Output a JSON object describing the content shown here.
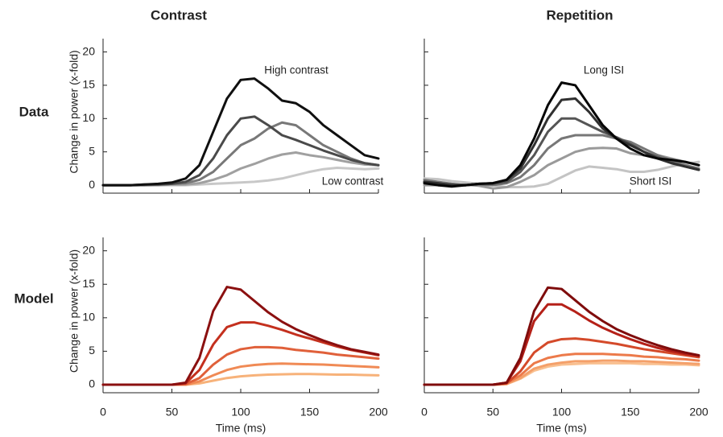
{
  "chart_data": [
    {
      "type": "line",
      "title": "Contrast",
      "row_label": "Data",
      "ylabel": "Change in power (x-fold)",
      "annotations": [
        "High contrast",
        "Low contrast"
      ],
      "x": [
        0,
        10,
        20,
        30,
        40,
        50,
        60,
        70,
        80,
        90,
        100,
        110,
        120,
        130,
        140,
        150,
        160,
        170,
        180,
        190,
        200
      ],
      "xlim": [
        0,
        200
      ],
      "xticks": [
        0,
        50,
        100,
        150,
        200
      ],
      "xtick_labels": false,
      "ylim": [
        -1.2,
        22
      ],
      "yticks": [
        0,
        5,
        10,
        15,
        20
      ],
      "ytick_labels": true,
      "series": [
        {
          "color": "#c8c8c8",
          "values": [
            0,
            0,
            0,
            0,
            0,
            0,
            0,
            0.1,
            0.2,
            0.3,
            0.4,
            0.5,
            0.7,
            1,
            1.5,
            2,
            2.4,
            2.6,
            2.5,
            2.4,
            2.5
          ]
        },
        {
          "color": "#a0a0a0",
          "values": [
            0,
            0,
            0,
            0,
            0,
            0.1,
            0.1,
            0.3,
            0.8,
            1.5,
            2.5,
            3.2,
            4,
            4.6,
            4.9,
            4.5,
            4.2,
            3.8,
            3.4,
            3.1,
            3
          ]
        },
        {
          "color": "#787878",
          "values": [
            0,
            0,
            0,
            0,
            0.1,
            0.2,
            0.3,
            0.8,
            2,
            4,
            6,
            7,
            8.5,
            9.4,
            9,
            7.5,
            6,
            5,
            4,
            3.3,
            3
          ]
        },
        {
          "color": "#4a4a4a",
          "values": [
            0,
            0,
            0,
            0.1,
            0.1,
            0.2,
            0.5,
            1.5,
            4,
            7.5,
            10,
            10.3,
            9,
            7.5,
            6.8,
            6,
            5.2,
            4.5,
            3.8,
            3.3,
            3
          ]
        },
        {
          "color": "#101010",
          "values": [
            0,
            0,
            0,
            0.1,
            0.2,
            0.4,
            1,
            3,
            8,
            13,
            15.8,
            16,
            14.5,
            12.7,
            12.3,
            11,
            9,
            7.5,
            6,
            4.5,
            4
          ]
        }
      ]
    },
    {
      "type": "line",
      "title": "Repetition",
      "annotations": [
        "Long ISI",
        "Short ISI"
      ],
      "x": [
        0,
        10,
        20,
        30,
        40,
        50,
        60,
        70,
        80,
        90,
        100,
        110,
        120,
        130,
        140,
        150,
        160,
        170,
        180,
        190,
        200
      ],
      "xlim": [
        0,
        200
      ],
      "xticks": [
        0,
        50,
        100,
        150,
        200
      ],
      "xtick_labels": false,
      "ylim": [
        -1.2,
        22
      ],
      "yticks": [
        0,
        5,
        10,
        15,
        20
      ],
      "ytick_labels": false,
      "series": [
        {
          "color": "#c4c4c4",
          "values": [
            1,
            0.9,
            0.6,
            0.4,
            0.2,
            0,
            -0.3,
            -0.3,
            -0.2,
            0.2,
            1.2,
            2.2,
            2.8,
            2.6,
            2.4,
            2,
            2,
            2.3,
            2.8,
            3.2,
            3.5
          ]
        },
        {
          "color": "#9a9a9a",
          "values": [
            0,
            0,
            0,
            0.1,
            -0.1,
            -0.5,
            -0.3,
            0.5,
            1.5,
            3,
            4,
            5,
            5.5,
            5.6,
            5.5,
            4.8,
            4.5,
            4.5,
            4,
            3.5,
            3
          ]
        },
        {
          "color": "#777777",
          "values": [
            0.8,
            0.5,
            0.2,
            0,
            0.1,
            0,
            0.3,
            1.2,
            3,
            5.5,
            7,
            7.5,
            7.5,
            7.5,
            7,
            6.5,
            5.5,
            4.5,
            3.7,
            3,
            2.5
          ]
        },
        {
          "color": "#555555",
          "values": [
            0.5,
            0.2,
            0.1,
            0,
            0.2,
            0.2,
            0.5,
            2,
            4.5,
            8,
            10,
            10,
            9,
            8,
            7.2,
            6.2,
            5,
            4.2,
            3.4,
            2.8,
            2.3
          ]
        },
        {
          "color": "#303030",
          "values": [
            0.5,
            0.3,
            0,
            0,
            0.2,
            0.3,
            0.8,
            2.5,
            6,
            10,
            12.8,
            13,
            11,
            8.5,
            7,
            6,
            5,
            4,
            3.3,
            2.8,
            2.3
          ]
        },
        {
          "color": "#050505",
          "values": [
            0.3,
            0,
            -0.2,
            0,
            0.2,
            0.3,
            0.8,
            3,
            7,
            12,
            15.4,
            15,
            12,
            9,
            7,
            5.5,
            4.5,
            4,
            3.8,
            3.5,
            3
          ]
        }
      ]
    },
    {
      "type": "line",
      "row_label": "Model",
      "ylabel": "Change in power (x-fold)",
      "xlabel": "Time (ms)",
      "x": [
        0,
        10,
        20,
        30,
        40,
        50,
        60,
        70,
        80,
        90,
        100,
        110,
        120,
        130,
        140,
        150,
        160,
        170,
        180,
        190,
        200
      ],
      "xlim": [
        0,
        200
      ],
      "xticks": [
        0,
        50,
        100,
        150,
        200
      ],
      "xtick_labels": true,
      "ylim": [
        -1.2,
        22
      ],
      "yticks": [
        0,
        5,
        10,
        15,
        20
      ],
      "ytick_labels": true,
      "series": [
        {
          "color": "#f7b27a",
          "values": [
            0,
            0,
            0,
            0,
            0,
            0,
            0,
            0.2,
            0.6,
            1,
            1.25,
            1.4,
            1.5,
            1.55,
            1.6,
            1.6,
            1.55,
            1.5,
            1.5,
            1.45,
            1.4
          ]
        },
        {
          "color": "#f08a55",
          "values": [
            0,
            0,
            0,
            0,
            0,
            0,
            0,
            0.5,
            1.4,
            2.2,
            2.7,
            2.95,
            3.1,
            3.15,
            3.1,
            3.05,
            3,
            2.9,
            2.8,
            2.7,
            2.6
          ]
        },
        {
          "color": "#e0603a",
          "values": [
            0,
            0,
            0,
            0,
            0,
            0,
            0.1,
            1,
            3,
            4.5,
            5.3,
            5.6,
            5.6,
            5.5,
            5.2,
            5,
            4.8,
            4.5,
            4.3,
            4.1,
            3.9
          ]
        },
        {
          "color": "#c4301e",
          "values": [
            0,
            0,
            0,
            0,
            0,
            0,
            0.2,
            2.2,
            6,
            8.6,
            9.3,
            9.3,
            8.8,
            8.2,
            7.5,
            6.9,
            6.3,
            5.7,
            5.2,
            4.8,
            4.4
          ]
        },
        {
          "color": "#8b1010",
          "values": [
            0,
            0,
            0,
            0,
            0,
            0,
            0.3,
            4,
            11,
            14.6,
            14.2,
            12.5,
            10.8,
            9.4,
            8.3,
            7.4,
            6.6,
            5.9,
            5.3,
            4.9,
            4.5
          ]
        }
      ]
    },
    {
      "type": "line",
      "xlabel": "Time (ms)",
      "x": [
        0,
        10,
        20,
        30,
        40,
        50,
        60,
        70,
        80,
        90,
        100,
        110,
        120,
        130,
        140,
        150,
        160,
        170,
        180,
        190,
        200
      ],
      "xlim": [
        0,
        200
      ],
      "xticks": [
        0,
        50,
        100,
        150,
        200
      ],
      "xtick_labels": true,
      "ylim": [
        -1.2,
        22
      ],
      "yticks": [
        0,
        5,
        10,
        15,
        20
      ],
      "ytick_labels": false,
      "series": [
        {
          "color": "#f9c090",
          "values": [
            0,
            0,
            0,
            0,
            0,
            0,
            0.1,
            0.9,
            2.1,
            2.7,
            3,
            3.1,
            3.2,
            3.2,
            3.2,
            3.2,
            3.1,
            3.1,
            3,
            3,
            2.9
          ]
        },
        {
          "color": "#f4a06a",
          "values": [
            0,
            0,
            0,
            0,
            0,
            0,
            0.1,
            1,
            2.4,
            3,
            3.3,
            3.5,
            3.5,
            3.6,
            3.6,
            3.5,
            3.5,
            3.4,
            3.3,
            3.2,
            3.1
          ]
        },
        {
          "color": "#ec7a4a",
          "values": [
            0,
            0,
            0,
            0,
            0,
            0,
            0.2,
            1.4,
            3.2,
            4,
            4.4,
            4.6,
            4.6,
            4.6,
            4.5,
            4.4,
            4.2,
            4.1,
            3.9,
            3.8,
            3.6
          ]
        },
        {
          "color": "#d44a2a",
          "values": [
            0,
            0,
            0,
            0,
            0,
            0,
            0.2,
            2,
            4.8,
            6.3,
            6.8,
            6.9,
            6.7,
            6.4,
            6.1,
            5.7,
            5.3,
            5,
            4.7,
            4.4,
            4.1
          ]
        },
        {
          "color": "#b52018",
          "values": [
            0,
            0,
            0,
            0,
            0,
            0,
            0.3,
            3.5,
            9.5,
            12,
            12,
            10.9,
            9.6,
            8.5,
            7.6,
            6.8,
            6.1,
            5.5,
            5,
            4.6,
            4.3
          ]
        },
        {
          "color": "#7f0c0c",
          "values": [
            0,
            0,
            0,
            0,
            0,
            0,
            0.3,
            4,
            11,
            14.5,
            14.3,
            12.6,
            10.9,
            9.5,
            8.3,
            7.4,
            6.6,
            5.9,
            5.3,
            4.8,
            4.4
          ]
        }
      ]
    }
  ]
}
